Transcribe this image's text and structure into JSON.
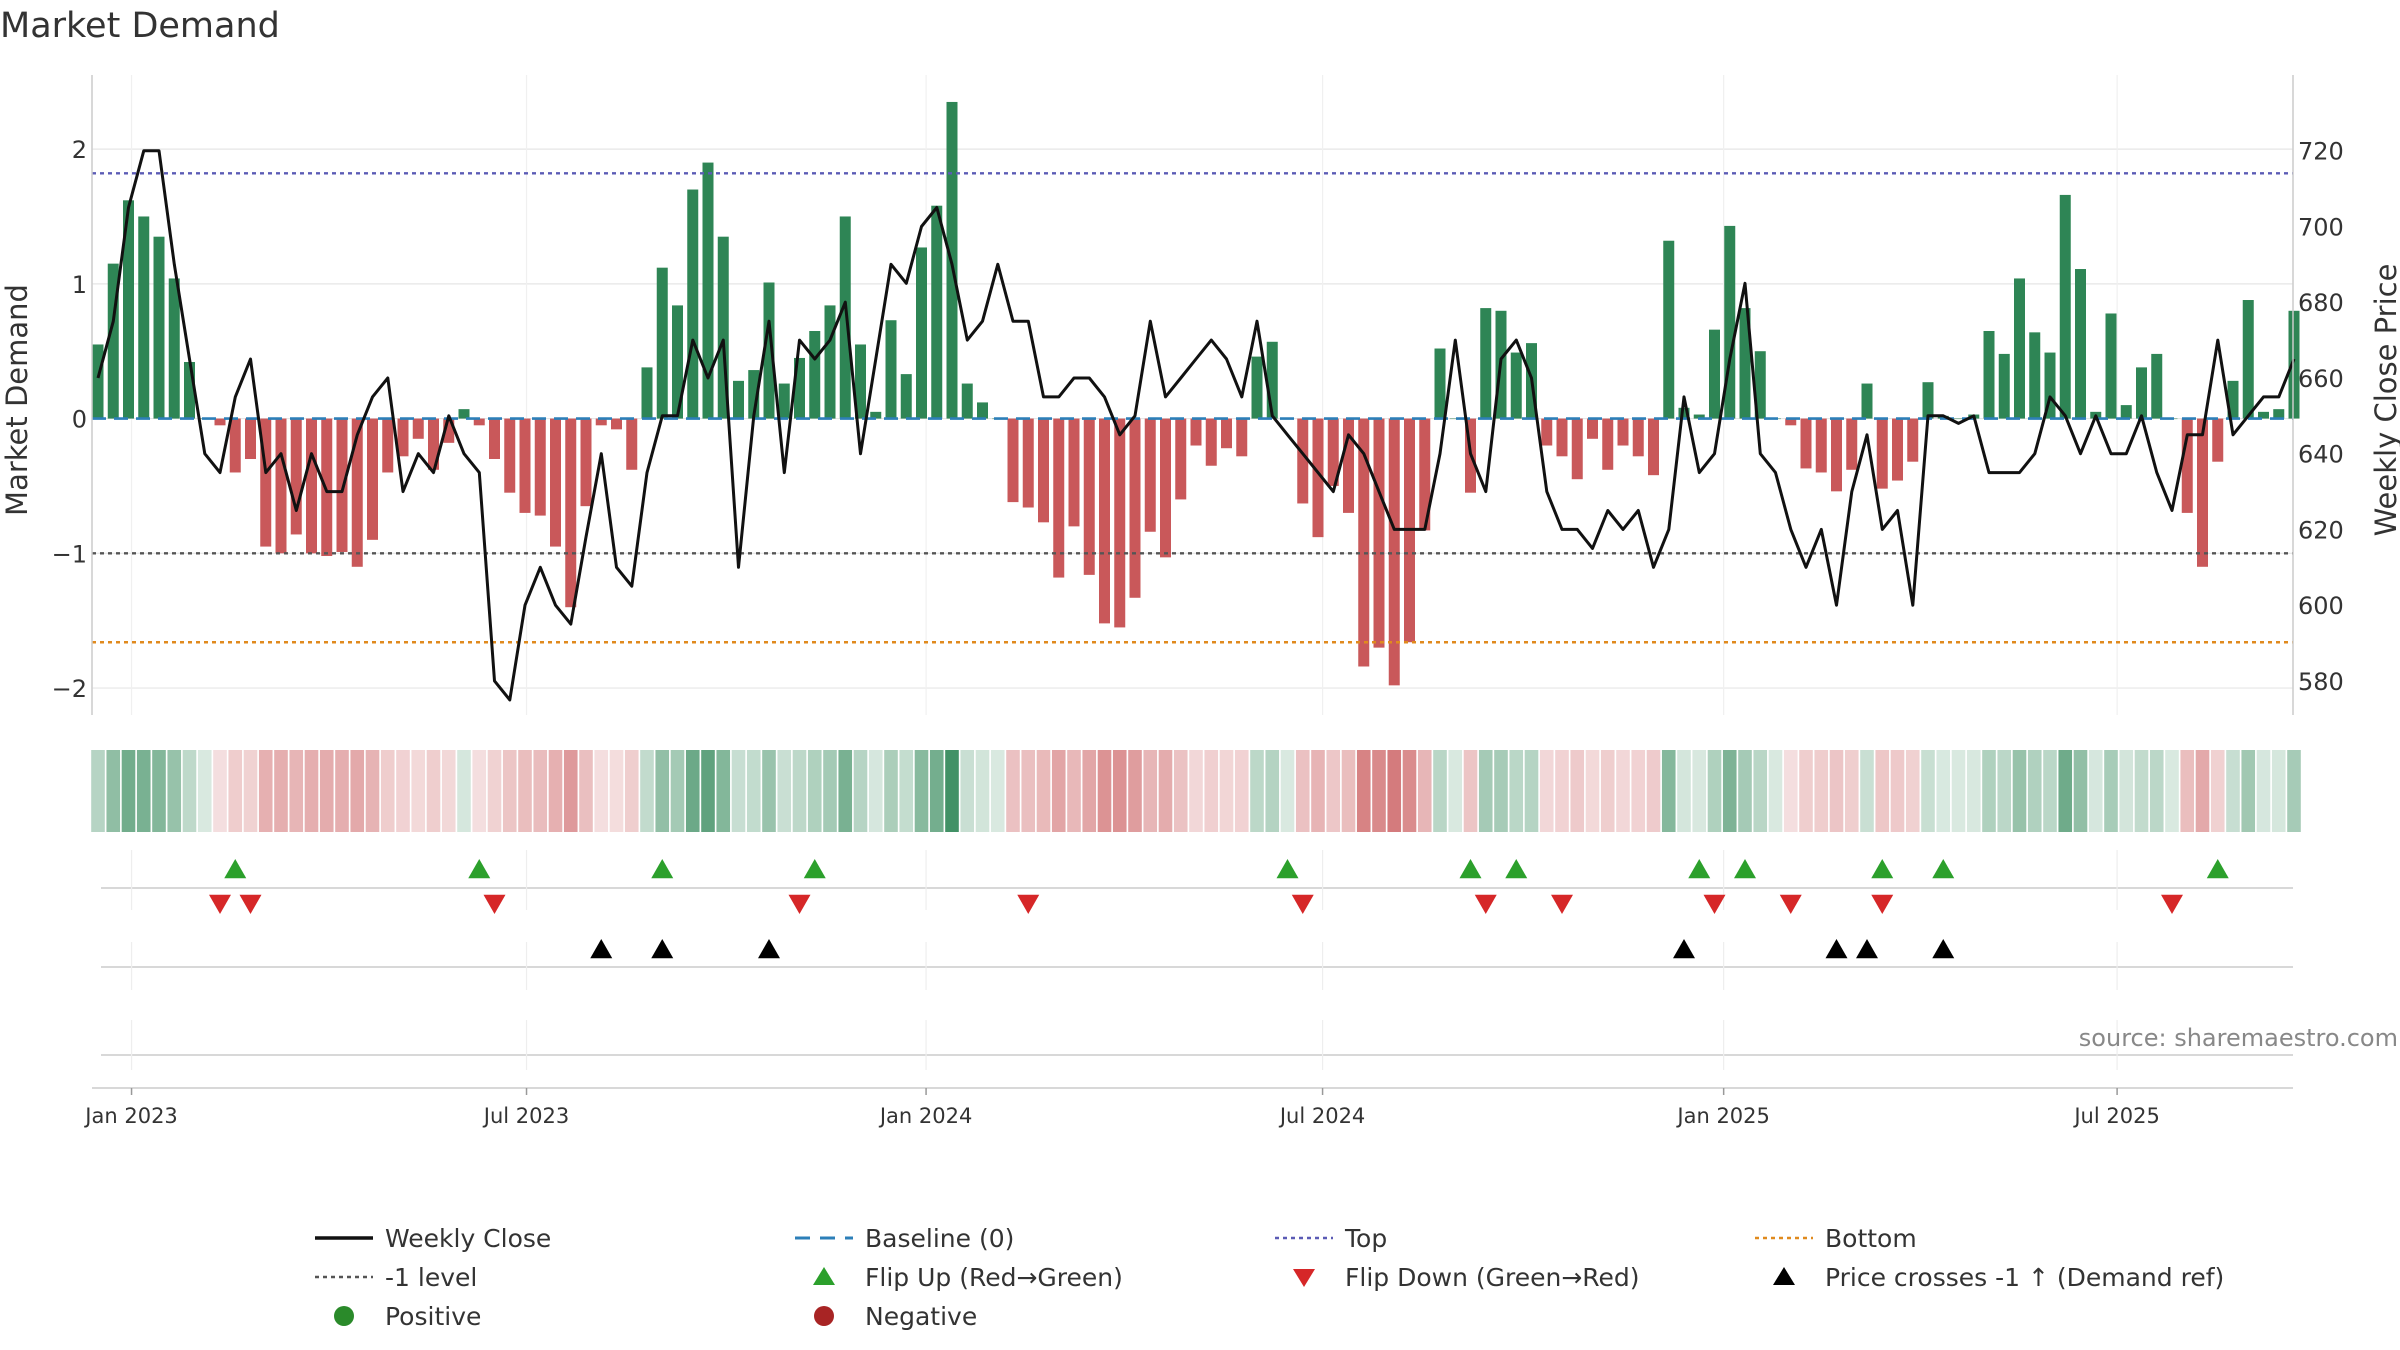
{
  "chart_data": {
    "type": "bar",
    "title": "Market Demand",
    "ylabel": "Market Demand",
    "ylabel_right": "Weekly Close Price",
    "source": "source: sharemaestro.com",
    "ylim": [
      -2.2,
      2.55
    ],
    "ylim_right": [
      571,
      740
    ],
    "left_ticks": [
      {
        "value": 2,
        "label": "2"
      },
      {
        "value": 1,
        "label": "1"
      },
      {
        "value": 0,
        "label": "0"
      },
      {
        "value": -1,
        "label": "−1"
      },
      {
        "value": -2,
        "label": "−2"
      }
    ],
    "right_ticks": [
      {
        "value": 720,
        "label": "720"
      },
      {
        "value": 700,
        "label": "700"
      },
      {
        "value": 680,
        "label": "680"
      },
      {
        "value": 660,
        "label": "660"
      },
      {
        "value": 640,
        "label": "640"
      },
      {
        "value": 620,
        "label": "620"
      },
      {
        "value": 600,
        "label": "600"
      },
      {
        "value": 580,
        "label": "580"
      }
    ],
    "x_ticks": [
      {
        "week": 2.2,
        "label": "Jan 2023"
      },
      {
        "week": 28.1,
        "label": "Jul 2023"
      },
      {
        "week": 54.3,
        "label": "Jan 2024"
      },
      {
        "week": 80.3,
        "label": "Jul 2024"
      },
      {
        "week": 106.6,
        "label": "Jan 2025"
      },
      {
        "week": 132.4,
        "label": "Jul 2025"
      }
    ],
    "reference_lines": {
      "top": 1.82,
      "minus_one": -1.0,
      "bottom": -1.66,
      "baseline": 0
    },
    "demand": [
      0.55,
      1.15,
      1.62,
      1.5,
      1.35,
      1.04,
      0.42,
      0,
      -0.05,
      -0.4,
      -0.3,
      -0.95,
      -1.0,
      -0.86,
      -1.0,
      -1.02,
      -0.99,
      -1.1,
      -0.9,
      -0.4,
      -0.28,
      -0.15,
      -0.38,
      -0.18,
      0.07,
      -0.05,
      -0.3,
      -0.55,
      -0.7,
      -0.72,
      -0.95,
      -1.4,
      -0.65,
      -0.05,
      -0.08,
      -0.38,
      0.38,
      1.12,
      0.84,
      1.7,
      1.9,
      1.35,
      0.28,
      0.36,
      1.01,
      0.26,
      0.45,
      0.65,
      0.84,
      1.5,
      0.55,
      0.05,
      0.73,
      0.33,
      1.27,
      1.58,
      2.35,
      0.26,
      0.12,
      0.0,
      -0.62,
      -0.66,
      -0.77,
      -1.18,
      -0.8,
      -1.16,
      -1.52,
      -1.55,
      -1.33,
      -0.84,
      -1.03,
      -0.6,
      -0.2,
      -0.35,
      -0.22,
      -0.28,
      0.46,
      0.57,
      0.0,
      -0.63,
      -0.88,
      -0.5,
      -0.7,
      -1.84,
      -1.7,
      -1.98,
      -1.66,
      -0.83,
      0.52,
      0.0,
      -0.55,
      0.82,
      0.8,
      0.49,
      0.56,
      -0.2,
      -0.28,
      -0.45,
      -0.15,
      -0.38,
      -0.2,
      -0.28,
      -0.42,
      1.32,
      0.08,
      0.03,
      0.66,
      1.43,
      0.82,
      0.5,
      0.0,
      -0.05,
      -0.37,
      -0.4,
      -0.54,
      -0.38,
      0.26,
      -0.52,
      -0.46,
      -0.32,
      0.27,
      0.02,
      0.0,
      0.03,
      0.65,
      0.48,
      1.04,
      0.64,
      0.49,
      1.66,
      1.11,
      0.05,
      0.78,
      0.1,
      0.38,
      0.48,
      0.0,
      -0.7,
      -1.1,
      -0.32,
      0.28,
      0.88,
      0.05,
      0.07,
      0.8
    ],
    "price": [
      660,
      675,
      705,
      720,
      720,
      690,
      665,
      640,
      635,
      655,
      665,
      635,
      640,
      625,
      640,
      630,
      630,
      645,
      655,
      660,
      630,
      640,
      635,
      650,
      640,
      635,
      580,
      575,
      600,
      610,
      600,
      595,
      618,
      640,
      610,
      605,
      635,
      650,
      650,
      670,
      660,
      670,
      610,
      650,
      675,
      635,
      670,
      665,
      670,
      680,
      640,
      665,
      690,
      685,
      700,
      705,
      690,
      670,
      675,
      690,
      675,
      675,
      655,
      655,
      660,
      660,
      655,
      645,
      650,
      675,
      655,
      660,
      665,
      670,
      665,
      655,
      675,
      650,
      645,
      640,
      635,
      630,
      645,
      640,
      630,
      620,
      620,
      620,
      640,
      670,
      640,
      630,
      665,
      670,
      660,
      630,
      620,
      620,
      615,
      625,
      620,
      625,
      610,
      620,
      655,
      635,
      640,
      665,
      685,
      640,
      635,
      620,
      610,
      620,
      600,
      630,
      645,
      620,
      625,
      600,
      650,
      650,
      648,
      650,
      635,
      635,
      635,
      640,
      655,
      650,
      640,
      650,
      640,
      640,
      650,
      635,
      625,
      645,
      645,
      670,
      645,
      650,
      655,
      655,
      665
    ],
    "flip_up_weeks": [
      9,
      25,
      37,
      47,
      78,
      90,
      93,
      105,
      108,
      117,
      121,
      139
    ],
    "flip_down_weeks": [
      8,
      10,
      26,
      46,
      61,
      79,
      91,
      96,
      106,
      111,
      117,
      136
    ],
    "price_cross_weeks": [
      33,
      37,
      44,
      104,
      114,
      116,
      121
    ],
    "legend": [
      {
        "key": "weekly_close",
        "label": "Weekly Close"
      },
      {
        "key": "baseline",
        "label": "Baseline (0)"
      },
      {
        "key": "top",
        "label": "Top"
      },
      {
        "key": "bottom",
        "label": "Bottom"
      },
      {
        "key": "minus_one",
        "label": "-1 level"
      },
      {
        "key": "flip_up",
        "label": "Flip Up (Red→Green)"
      },
      {
        "key": "flip_down",
        "label": "Flip Down (Green→Red)"
      },
      {
        "key": "price_cross",
        "label": "Price crosses -1 ↑ (Demand ref)"
      },
      {
        "key": "positive",
        "label": "Positive"
      },
      {
        "key": "negative",
        "label": "Negative"
      }
    ]
  },
  "colors": {
    "positive_bar": "#2e8555",
    "negative_bar": "#c9585a",
    "price_line": "#111111",
    "baseline": "#2c7fb8",
    "top_line": "#5b5bb5",
    "minus_one_line": "#555555",
    "bottom_line": "#e08a1e",
    "flip_up": "#2ca02c",
    "flip_down": "#d62728",
    "price_cross": "#000000",
    "positive_dot": "#2a8a2a",
    "negative_dot": "#a82424",
    "grid": "#e6e6e6",
    "axis": "#cccccc",
    "text": "#333333"
  }
}
